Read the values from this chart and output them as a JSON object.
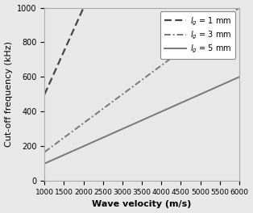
{
  "title": "",
  "xlabel": "Wave velocity (m/s)",
  "ylabel": "Cut-off frequency (kHz)",
  "xlim": [
    1000,
    6000
  ],
  "ylim": [
    0,
    1000
  ],
  "xticks": [
    1000,
    1500,
    2000,
    2500,
    3000,
    3500,
    4000,
    4500,
    5000,
    5500,
    6000
  ],
  "yticks": [
    0,
    200,
    400,
    600,
    800,
    1000
  ],
  "lines": [
    {
      "label": "$l_g$ = 1 mm",
      "gauge_mm": 1,
      "linestyle": "dashed",
      "color": "#444444",
      "linewidth": 1.6
    },
    {
      "label": "$l_g$ = 3 mm",
      "gauge_mm": 3,
      "linestyle": "dashdot",
      "color": "#777777",
      "linewidth": 1.4
    },
    {
      "label": "$l_g$ = 5 mm",
      "gauge_mm": 5,
      "linestyle": "solid",
      "color": "#777777",
      "linewidth": 1.4
    }
  ],
  "legend_loc": "upper right",
  "background_color": "#e8e8e8",
  "axes_bg": "#e8e8e8",
  "grid": false,
  "xlabel_fontsize": 8,
  "ylabel_fontsize": 8,
  "tick_fontsize": 6.5,
  "legend_fontsize": 7
}
